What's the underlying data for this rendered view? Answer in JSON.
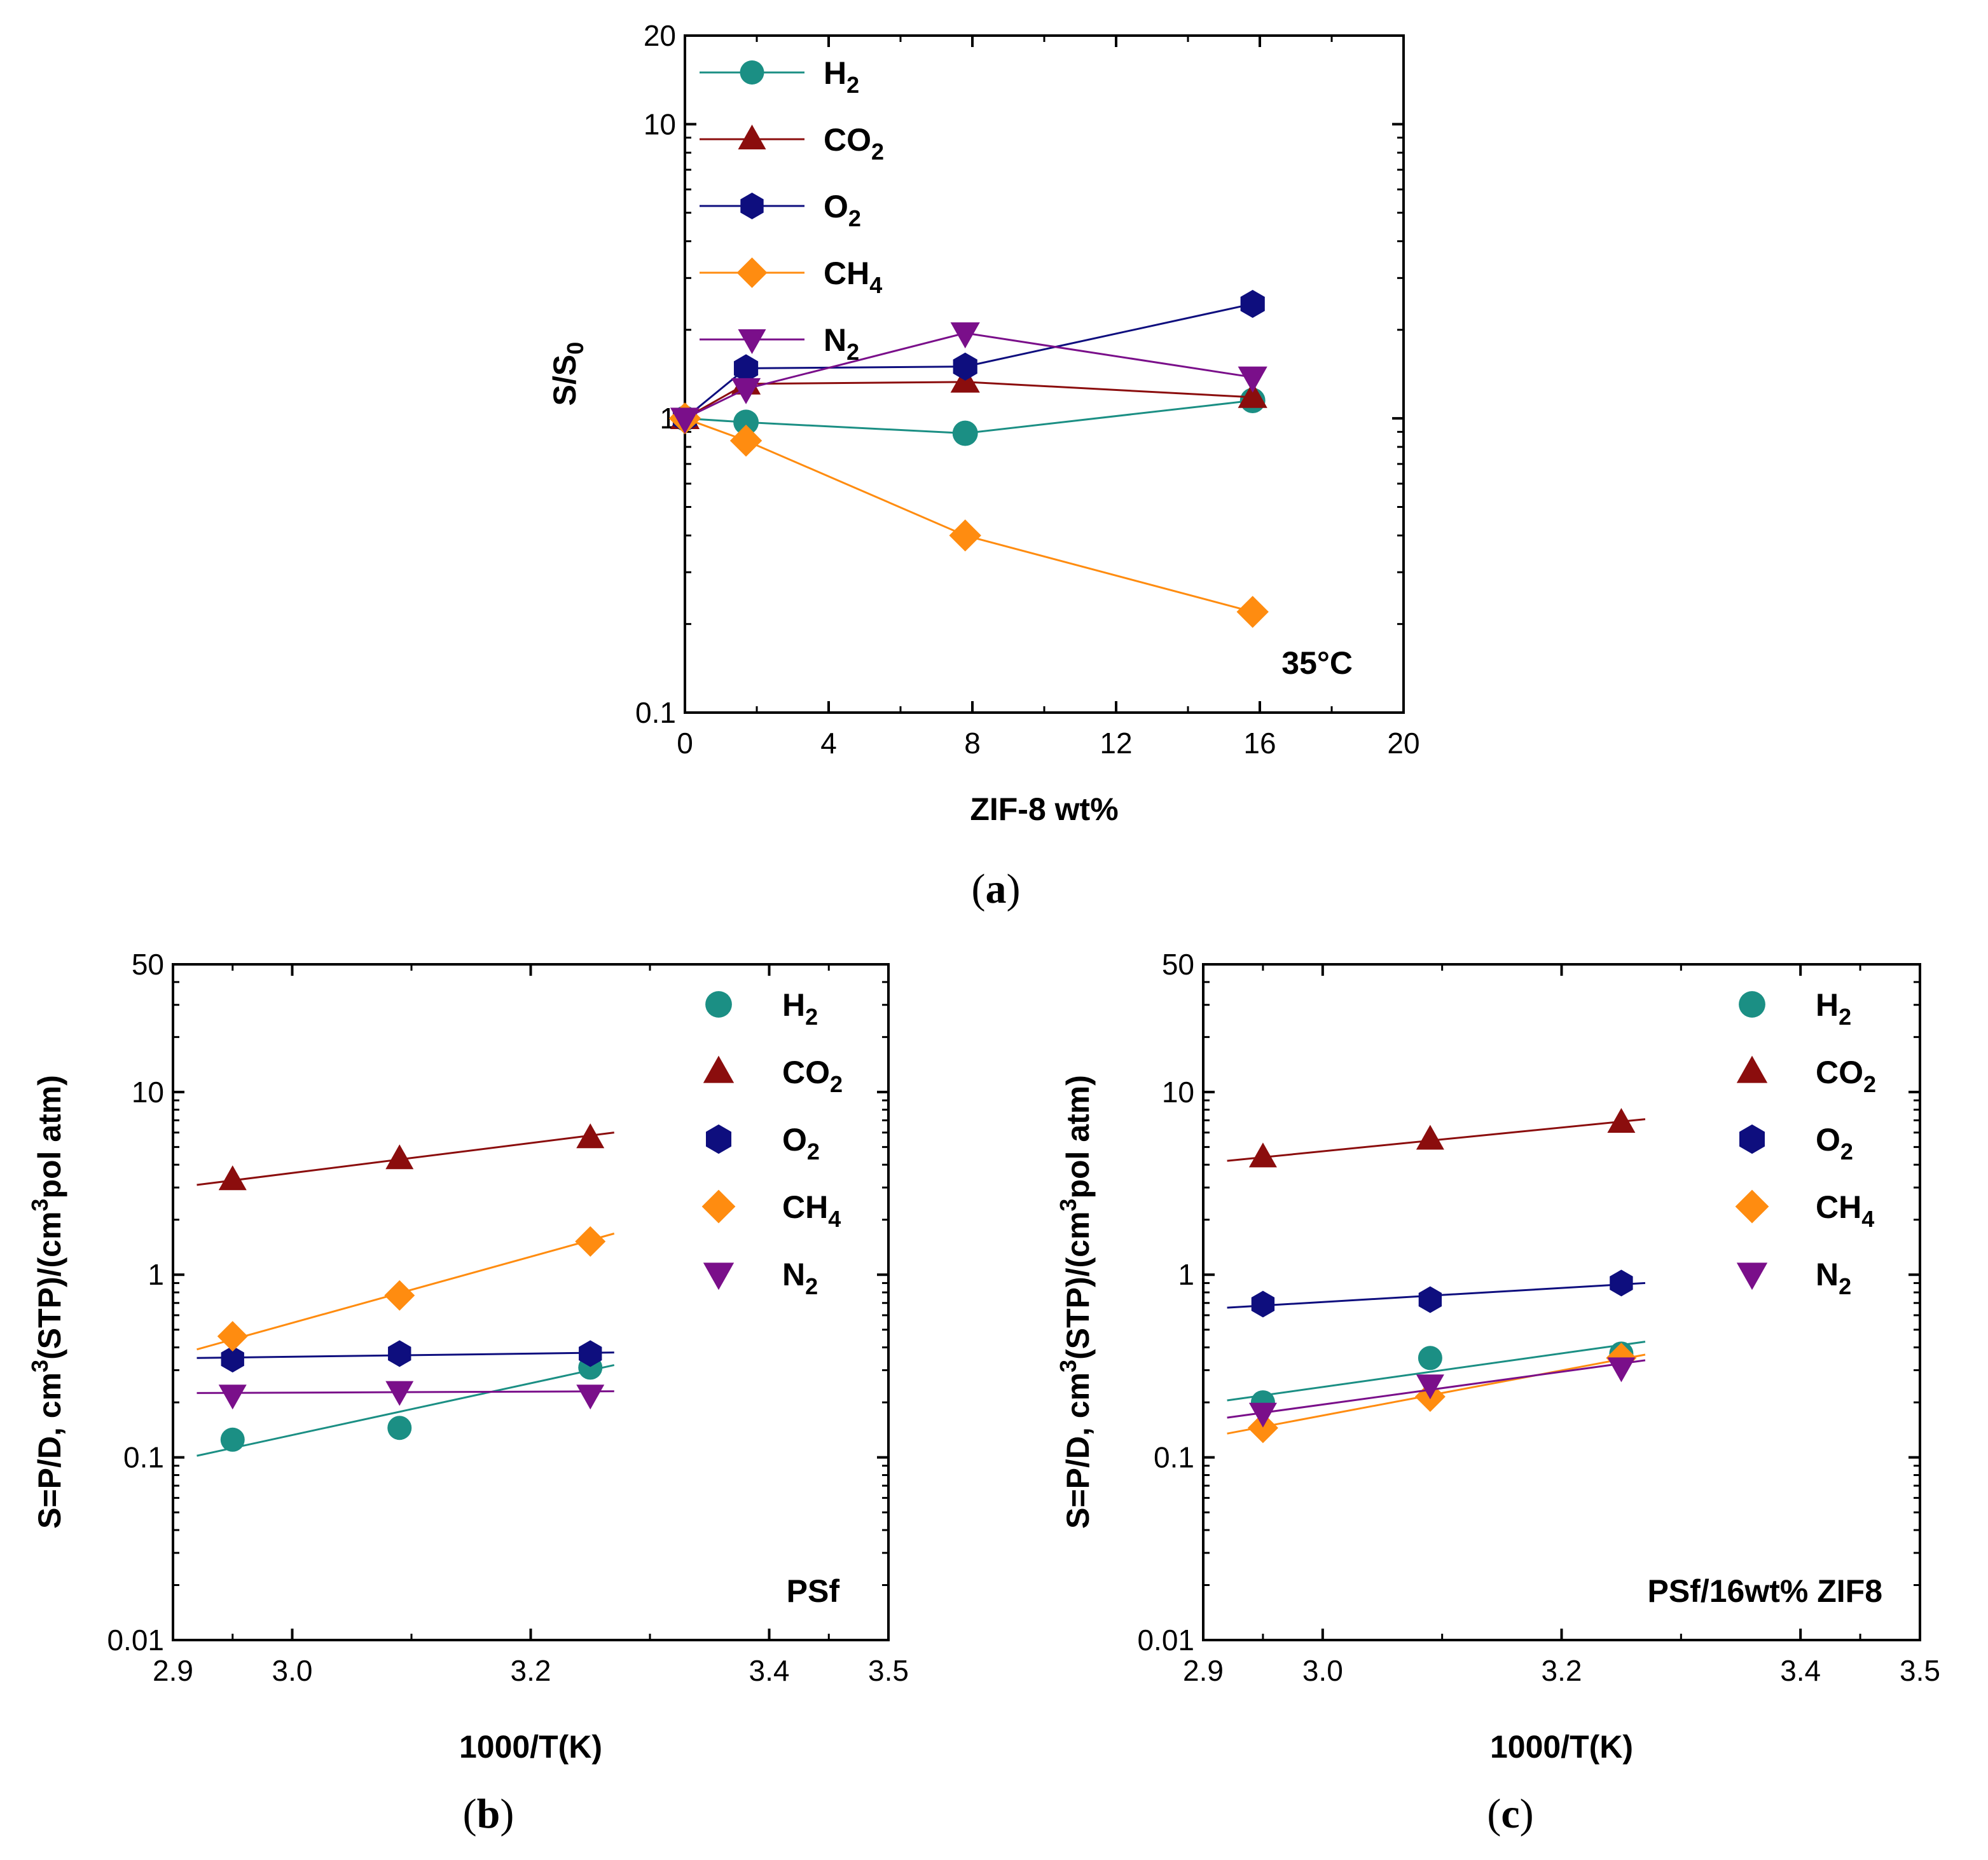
{
  "colors": {
    "H2": "#1b8f84",
    "CO2": "#8b0d0d",
    "O2": "#0e0e7e",
    "CH4": "#ff8c10",
    "N2": "#7a0f8a"
  },
  "chart_data": [
    {
      "id": "a",
      "type": "line",
      "caption": {
        "open": "(",
        "letter": "a",
        "close": ")"
      },
      "xlabel": "ZIF-8 wt%",
      "ylabel": {
        "main": "S/S",
        "sub": "0"
      },
      "yscale": "log",
      "xlim": [
        0,
        20
      ],
      "ylim": [
        0.1,
        20
      ],
      "xticks": [
        "0",
        "4",
        "8",
        "12",
        "16",
        "20"
      ],
      "yticks": [
        "0.1",
        "1",
        "10",
        "20"
      ],
      "annotation": "35°C",
      "legend_position": "top-left",
      "series": [
        {
          "key": "H2",
          "name": "H",
          "sub": "2",
          "marker": "circle",
          "x": [
            0,
            1.7,
            7.8,
            15.8
          ],
          "y": [
            1.0,
            0.97,
            0.89,
            1.15
          ]
        },
        {
          "key": "CO2",
          "name": "CO",
          "sub": "2",
          "marker": "triangle-up",
          "x": [
            0,
            1.7,
            7.8,
            15.8
          ],
          "y": [
            1.0,
            1.31,
            1.33,
            1.18
          ]
        },
        {
          "key": "O2",
          "name": "O",
          "sub": "2",
          "marker": "hexagon",
          "x": [
            0,
            1.7,
            7.8,
            15.8
          ],
          "y": [
            1.0,
            1.48,
            1.5,
            2.45
          ]
        },
        {
          "key": "CH4",
          "name": "CH",
          "sub": "4",
          "marker": "diamond",
          "x": [
            0,
            1.7,
            7.8,
            15.8
          ],
          "y": [
            1.0,
            0.84,
            0.4,
            0.22
          ]
        },
        {
          "key": "N2",
          "name": "N",
          "sub": "2",
          "marker": "triangle-down",
          "x": [
            0,
            1.7,
            7.8,
            15.8
          ],
          "y": [
            1.0,
            1.26,
            1.95,
            1.38
          ]
        }
      ]
    },
    {
      "id": "b",
      "type": "scatter",
      "caption": {
        "open": "(",
        "letter": "b",
        "close": ")"
      },
      "xlabel": "1000/T(K)",
      "ylabel": {
        "p1": "S=P/D, cm",
        "sup1": "3",
        "p2": "(STP)/(cm",
        "sup2": "3",
        "p3": "pol atm)"
      },
      "yscale": "log",
      "xlim": [
        2.9,
        3.5
      ],
      "ylim": [
        0.01,
        50
      ],
      "xticks": [
        "2.9",
        "3.0",
        "3.2",
        "3.4",
        "3.5"
      ],
      "yticks": [
        "0.01",
        "0.1",
        "1",
        "10",
        "50"
      ],
      "annotation": "PSf",
      "legend_position": "top-right",
      "fit_x_range": [
        2.92,
        3.27
      ],
      "series": [
        {
          "key": "H2",
          "name": "H",
          "sub": "2",
          "marker": "circle",
          "x": [
            2.95,
            3.09,
            3.25
          ],
          "y": [
            0.125,
            0.145,
            0.31
          ],
          "fit": [
            0.102,
            0.32
          ]
        },
        {
          "key": "CO2",
          "name": "CO",
          "sub": "2",
          "marker": "triangle-up",
          "x": [
            2.95,
            3.09,
            3.25
          ],
          "y": [
            3.3,
            4.3,
            5.6
          ],
          "fit": [
            3.1,
            6.0
          ]
        },
        {
          "key": "O2",
          "name": "O",
          "sub": "2",
          "marker": "hexagon",
          "x": [
            2.95,
            3.09,
            3.25
          ],
          "y": [
            0.345,
            0.37,
            0.37
          ],
          "fit": [
            0.35,
            0.375
          ]
        },
        {
          "key": "CH4",
          "name": "CH",
          "sub": "4",
          "marker": "diamond",
          "x": [
            2.95,
            3.09,
            3.25
          ],
          "y": [
            0.46,
            0.77,
            1.52
          ],
          "fit": [
            0.39,
            1.68
          ]
        },
        {
          "key": "N2",
          "name": "N",
          "sub": "2",
          "marker": "triangle-down",
          "x": [
            2.95,
            3.09,
            3.25
          ],
          "y": [
            0.22,
            0.23,
            0.22
          ],
          "fit": [
            0.225,
            0.23
          ]
        }
      ]
    },
    {
      "id": "c",
      "type": "scatter",
      "caption": {
        "open": "(",
        "letter": "c",
        "close": ")"
      },
      "xlabel": "1000/T(K)",
      "ylabel": {
        "p1": "S=P/D, cm",
        "sup1": "3",
        "p2": "(STP)/(cm",
        "sup2": "3",
        "p3": "pol atm)"
      },
      "yscale": "log",
      "xlim": [
        2.9,
        3.5
      ],
      "ylim": [
        0.01,
        50
      ],
      "xticks": [
        "2.9",
        "3.0",
        "3.2",
        "3.4",
        "3.5"
      ],
      "yticks": [
        "0.01",
        "0.1",
        "1",
        "10",
        "50"
      ],
      "annotation": "PSf/16wt% ZIF8",
      "legend_position": "top-right",
      "fit_x_range": [
        2.92,
        3.27
      ],
      "series": [
        {
          "key": "H2",
          "name": "H",
          "sub": "2",
          "marker": "circle",
          "x": [
            2.95,
            3.09,
            3.25
          ],
          "y": [
            0.2,
            0.35,
            0.37
          ],
          "fit": [
            0.205,
            0.43
          ]
        },
        {
          "key": "CO2",
          "name": "CO",
          "sub": "2",
          "marker": "triangle-up",
          "x": [
            2.95,
            3.09,
            3.25
          ],
          "y": [
            4.4,
            5.5,
            6.8
          ],
          "fit": [
            4.2,
            7.1
          ]
        },
        {
          "key": "O2",
          "name": "O",
          "sub": "2",
          "marker": "hexagon",
          "x": [
            2.95,
            3.09,
            3.25
          ],
          "y": [
            0.69,
            0.73,
            0.9
          ],
          "fit": [
            0.66,
            0.9
          ]
        },
        {
          "key": "CH4",
          "name": "CH",
          "sub": "4",
          "marker": "diamond",
          "x": [
            2.95,
            3.09,
            3.25
          ],
          "y": [
            0.145,
            0.215,
            0.35
          ],
          "fit": [
            0.135,
            0.365
          ]
        },
        {
          "key": "N2",
          "name": "N",
          "sub": "2",
          "marker": "triangle-down",
          "x": [
            2.95,
            3.09,
            3.25
          ],
          "y": [
            0.175,
            0.25,
            0.31
          ],
          "fit": [
            0.165,
            0.34
          ]
        }
      ]
    }
  ]
}
